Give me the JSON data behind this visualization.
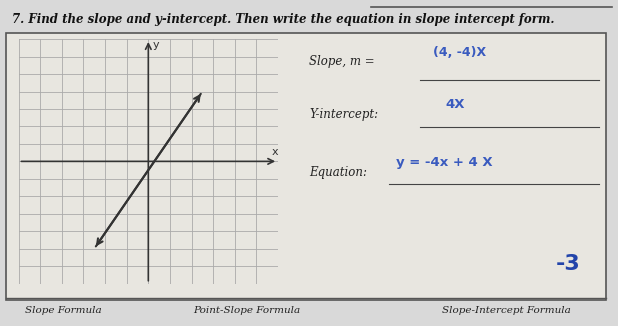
{
  "title": "7. Find the slope and y-intercept. Then write the equation in slope intercept form.",
  "slope_label": "Slope, m =",
  "slope_value": "(4, -4)X",
  "yint_label": "Y-intercept:",
  "yint_value": "4X",
  "eq_label": "Equation:",
  "eq_value": "y = -4x + 4 X",
  "corner_number": "-3",
  "footer_left": "Slope Formula",
  "footer_mid": "Point-Slope Formula",
  "footer_right": "Slope-Intercept Formula",
  "bg_color": "#d9d9d9",
  "paper_color": "#e8e6e0",
  "grid_color": "#aaaaaa",
  "line_color": "#333333",
  "handwrite_color": "#3a5bbf",
  "handwrite_color2": "#2244aa",
  "border_color": "#555555"
}
